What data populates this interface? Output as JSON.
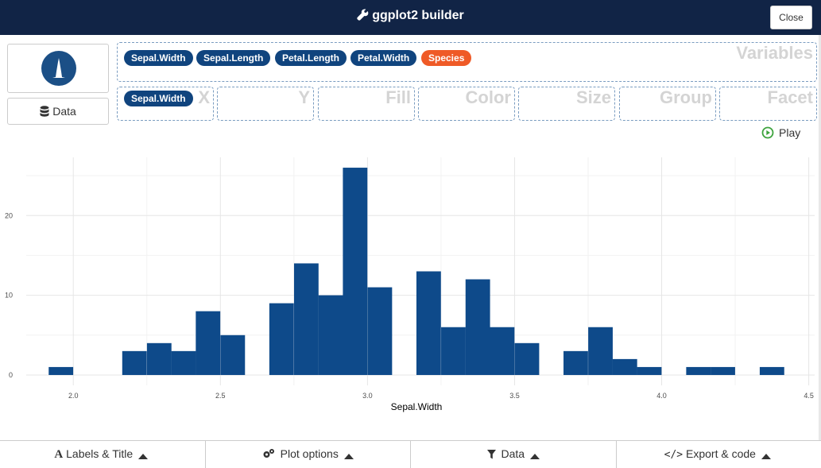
{
  "header": {
    "title": "ggplot2 builder",
    "close_label": "Close"
  },
  "sidebar": {
    "data_label": "Data"
  },
  "variables": {
    "label": "Variables",
    "pills": [
      "Sepal.Width",
      "Sepal.Length",
      "Petal.Length",
      "Petal.Width",
      "Species"
    ]
  },
  "zones": [
    {
      "label": "X",
      "value": "Sepal.Width"
    },
    {
      "label": "Y",
      "value": ""
    },
    {
      "label": "Fill",
      "value": ""
    },
    {
      "label": "Color",
      "value": ""
    },
    {
      "label": "Size",
      "value": ""
    },
    {
      "label": "Group",
      "value": ""
    },
    {
      "label": "Facet",
      "value": ""
    }
  ],
  "play_label": "Play",
  "footer": {
    "labels_title": "Labels & Title",
    "plot_options": "Plot options",
    "data": "Data",
    "export": "Export & code"
  },
  "colors": {
    "header_bg": "#112446",
    "bar": "#0e4a8a",
    "species_pill": "#ef5a27"
  },
  "chart_data": {
    "type": "bar",
    "xlabel": "Sepal.Width",
    "ylabel": "",
    "bin_width": 0.0833,
    "x": [
      1.958,
      2.042,
      2.125,
      2.208,
      2.292,
      2.375,
      2.458,
      2.542,
      2.625,
      2.708,
      2.792,
      2.875,
      2.958,
      3.042,
      3.125,
      3.208,
      3.292,
      3.375,
      3.458,
      3.542,
      3.625,
      3.708,
      3.792,
      3.875,
      3.958,
      4.042,
      4.125,
      4.208,
      4.292,
      4.375,
      4.458
    ],
    "values": [
      1,
      0,
      0,
      3,
      4,
      3,
      8,
      5,
      0,
      9,
      14,
      10,
      26,
      11,
      0,
      13,
      6,
      12,
      6,
      4,
      0,
      3,
      6,
      2,
      1,
      0,
      1,
      1,
      0,
      1,
      0
    ],
    "xlim": [
      1.84,
      4.52
    ],
    "ylim": [
      -1.3,
      27.3
    ],
    "x_ticks": [
      2.0,
      2.5,
      3.0,
      3.5,
      4.0,
      4.5
    ],
    "x_tick_labels": [
      "2.0",
      "2.5",
      "3.0",
      "3.5",
      "4.0",
      "4.5"
    ],
    "y_ticks": [
      0,
      10,
      20
    ],
    "y_tick_labels": [
      "0",
      "10",
      "20"
    ],
    "grid": true
  }
}
